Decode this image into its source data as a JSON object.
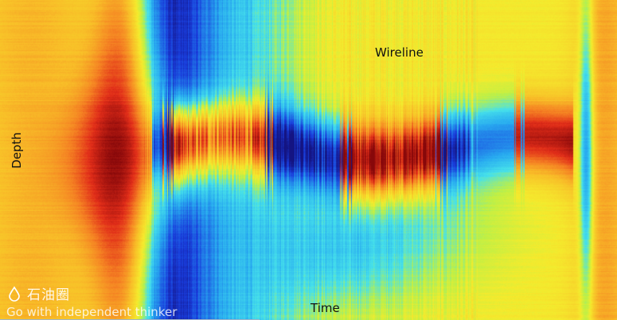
{
  "chart_data": {
    "type": "heatmap",
    "title": "",
    "xlabel": "Time",
    "ylabel": "Depth",
    "annotation": "Wireline",
    "colormap": "jet",
    "colors": {
      "dark_red": "#8b0a0a",
      "red": "#e8321e",
      "orange": "#f59a2a",
      "yellow": "#f5ea2e",
      "cyan": "#3cd6f0",
      "blue": "#1e4ad8",
      "navy": "#1a1a8a"
    },
    "grid": false,
    "legend": "none"
  },
  "watermark": {
    "cn": "石油圈",
    "en": "Go with independent thinker"
  }
}
